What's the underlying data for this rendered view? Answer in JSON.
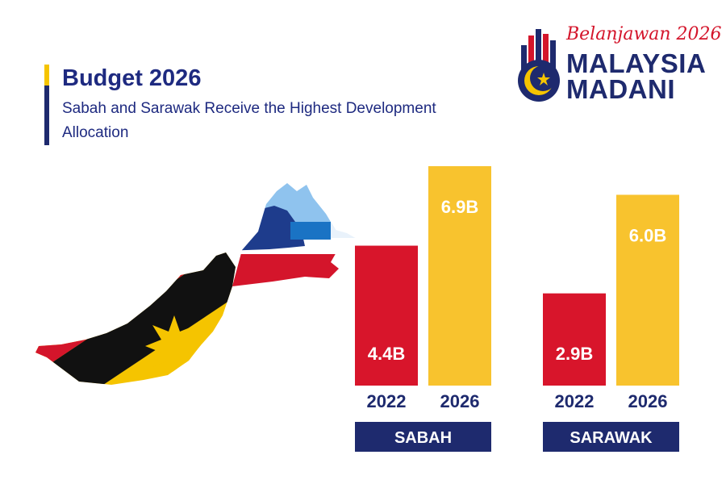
{
  "header": {
    "title": "Budget 2026",
    "subtitle": "Sabah and Sarawak Receive the Highest Development Allocation"
  },
  "logo": {
    "tagline": "Belanjawan 2026",
    "line1": "MALAYSIA",
    "line2": "MADANI"
  },
  "colors": {
    "navy": "#1e2a6e",
    "red": "#d8152b",
    "yellow": "#f8c32e",
    "title_blue": "#1e2a80"
  },
  "chart_data": {
    "type": "bar",
    "groups": [
      {
        "name": "SABAH",
        "bars": [
          {
            "x": "2022",
            "value": 4.4,
            "label": "4.4B"
          },
          {
            "x": "2026",
            "value": 6.9,
            "label": "6.9B"
          }
        ]
      },
      {
        "name": "SARAWAK",
        "bars": [
          {
            "x": "2022",
            "value": 2.9,
            "label": "2.9B"
          },
          {
            "x": "2026",
            "value": 6.0,
            "label": "6.0B"
          }
        ]
      }
    ],
    "series_colors": {
      "2022": "#d8152b",
      "2026": "#f8c32e"
    },
    "ylim": [
      0,
      6.9
    ],
    "grid": false
  }
}
